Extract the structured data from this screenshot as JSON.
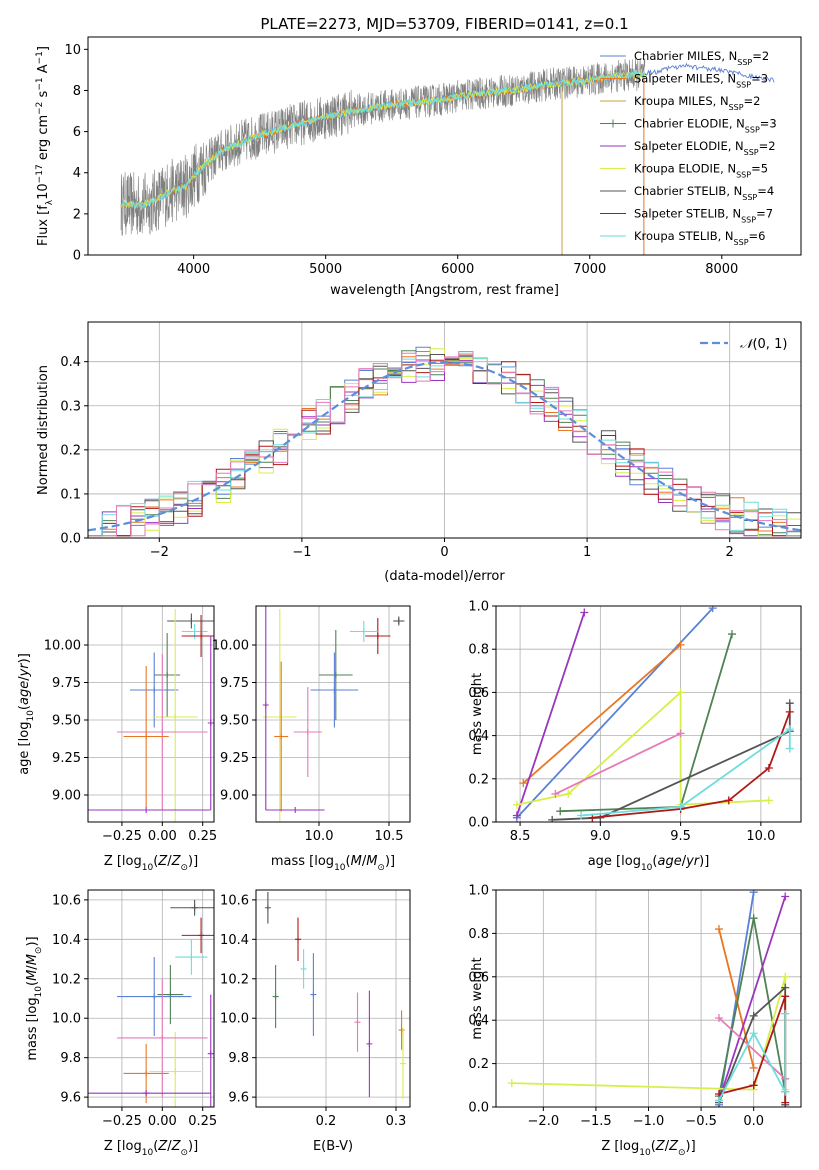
{
  "colors": {
    "Chabrier MILES": "#5b80d6",
    "Salpeter MILES": "#e87724",
    "Kroupa MILES": "#c8a040",
    "Chabrier ELODIE": "#4f8254",
    "Salpeter ELODIE": "#9b35c0",
    "Kroupa ELODIE": "#d9ee4a",
    "Chabrier STELIB": "#555555",
    "Salpeter STELIB": "#b01818",
    "Kroupa STELIB": "#6edddd",
    "pink": "#e67ab8",
    "data": "#808080",
    "gauss": "#5b8fdc"
  },
  "chart_data": [
    {
      "id": "spectrum",
      "type": "line",
      "title": "PLATE=2273, MJD=53709, FIBERID=0141, z=0.1",
      "xlabel": "wavelength [Angstrom, rest frame]",
      "ylabel": "Flux [f_λ 10^-17 erg cm^-2 s^-1 A^-1]",
      "xlim": [
        3200,
        8600
      ],
      "ylim": [
        0,
        10.6
      ],
      "xticks": [
        "4000",
        "5000",
        "6000",
        "7000",
        "8000"
      ],
      "yticks": [
        "0",
        "2",
        "4",
        "6",
        "8",
        "10"
      ],
      "grid": false,
      "legend_position": "top-right",
      "data_range_angstrom": [
        3450,
        7420
      ],
      "continuum_knots": {
        "x": [
          3450,
          3600,
          3700,
          3800,
          3950,
          4050,
          4200,
          4400,
          4600,
          4800,
          5000,
          5200,
          5500,
          5800,
          6100,
          6400,
          6700,
          7000,
          7200,
          7420
        ],
        "y": [
          2.5,
          2.4,
          2.6,
          3.0,
          3.4,
          4.2,
          5.0,
          5.6,
          6.0,
          6.4,
          6.7,
          7.0,
          7.3,
          7.5,
          7.8,
          8.0,
          8.3,
          8.5,
          8.7,
          8.8
        ]
      },
      "model_extension": {
        "x": [
          7420,
          7700,
          8000,
          8200,
          8400
        ],
        "y": [
          8.8,
          9.2,
          9.0,
          8.7,
          8.5
        ]
      },
      "legend": [
        {
          "label": "Chabrier MILES, N",
          "sub": "SSP",
          "n": "=2",
          "color_key": "Chabrier MILES"
        },
        {
          "label": "Salpeter MILES, N",
          "sub": "SSP",
          "n": "=3",
          "color_key": "Salpeter MILES"
        },
        {
          "label": "Kroupa MILES, N",
          "sub": "SSP",
          "n": "=2",
          "color_key": "Kroupa MILES"
        },
        {
          "label": "Chabrier ELODIE, N",
          "sub": "SSP",
          "n": "=3",
          "color_key": "Chabrier ELODIE"
        },
        {
          "label": "Salpeter ELODIE, N",
          "sub": "SSP",
          "n": "=2",
          "color_key": "Salpeter ELODIE"
        },
        {
          "label": "Kroupa ELODIE, N",
          "sub": "SSP",
          "n": "=5",
          "color_key": "Kroupa ELODIE"
        },
        {
          "label": "Chabrier STELIB, N",
          "sub": "SSP",
          "n": "=4",
          "color_key": "Chabrier STELIB"
        },
        {
          "label": "Salpeter STELIB, N",
          "sub": "SSP",
          "n": "=7",
          "color_key": "Salpeter STELIB"
        },
        {
          "label": "Kroupa STELIB, N",
          "sub": "SSP",
          "n": "=6",
          "color_key": "Kroupa STELIB"
        }
      ]
    },
    {
      "id": "residuals",
      "type": "line",
      "xlabel": "(data-model)/error",
      "ylabel": "Normed distribution",
      "xlim": [
        -2.5,
        2.5
      ],
      "ylim": [
        0,
        0.49
      ],
      "xticks": [
        -2,
        -1,
        0,
        1,
        2
      ],
      "xticklabels": [
        "−2",
        "−1",
        "0",
        "1",
        "2"
      ],
      "yticks": [
        0.0,
        0.1,
        0.2,
        0.3,
        0.4
      ],
      "yticklabels": [
        "0.0",
        "0.1",
        "0.2",
        "0.3",
        "0.4"
      ],
      "grid": true,
      "legend_position": "top-right",
      "legend_label": "N(0, 1)",
      "bin_width": 0.1,
      "gaussian": {
        "mean": 0,
        "sigma": 1
      },
      "histogram_color_keys": [
        "Chabrier MILES",
        "Salpeter MILES",
        "Chabrier ELODIE",
        "Salpeter ELODIE",
        "Kroupa ELODIE",
        "Chabrier STELIB",
        "Salpeter STELIB",
        "Kroupa STELIB",
        "pink"
      ]
    },
    {
      "id": "age_vs_Z",
      "type": "scatter",
      "xlabel": "Z [log10(Z/Z⊙)]",
      "ylabel": "age [log10(age/yr)]",
      "xlim": [
        -0.46,
        0.32
      ],
      "ylim": [
        8.82,
        10.26
      ],
      "xticks": [
        -0.25,
        0.0,
        0.25
      ],
      "xticklabels": [
        "−0.25",
        "0.00",
        "0.25"
      ],
      "yticks": [
        9.0,
        9.25,
        9.5,
        9.75,
        10.0
      ],
      "yticklabels": [
        "9.00",
        "9.25",
        "9.50",
        "9.75",
        "10.00"
      ],
      "grid": true,
      "points": [
        {
          "c": "Chabrier STELIB",
          "x": 0.18,
          "y": 10.16,
          "xerr": 0.15,
          "yerr": 0.05
        },
        {
          "c": "Kroupa STELIB",
          "x": 0.2,
          "y": 10.09,
          "xerr": 0.08,
          "yerr": 0.05
        },
        {
          "c": "Salpeter STELIB",
          "x": 0.24,
          "y": 10.06,
          "xerr": 0.12,
          "yerr": 0.14
        },
        {
          "c": "Chabrier ELODIE",
          "x": 0.03,
          "y": 9.8,
          "xerr": 0.08,
          "yerr": 0.28
        },
        {
          "c": "Chabrier MILES",
          "x": -0.05,
          "y": 9.7,
          "xerr": 0.15,
          "yerr": 0.25
        },
        {
          "c": "Kroupa ELODIE",
          "x": 0.08,
          "y": 9.52,
          "xerr": 0.14,
          "yerr": 0.72
        },
        {
          "c": "pink",
          "x": 0.0,
          "y": 9.42,
          "xerr": 0.28,
          "yerr": 0.52
        },
        {
          "c": "Salpeter MILES",
          "x": -0.1,
          "y": 9.39,
          "xerr": 0.14,
          "yerr": 0.47
        },
        {
          "c": "Salpeter ELODIE",
          "x": -0.1,
          "y": 8.9,
          "xerr": 0.4,
          "yerr": 0.0
        },
        {
          "c": "Salpeter ELODIE",
          "x": 0.3,
          "y": 9.48,
          "xerr": 0.0,
          "yerr": 0.58
        }
      ]
    },
    {
      "id": "age_vs_mass",
      "type": "scatter",
      "xlabel": "mass [log10(M/M⊙)]",
      "ylabel": "",
      "xlim": [
        9.55,
        10.65
      ],
      "ylim": [
        8.82,
        10.26
      ],
      "xticks": [
        10.0,
        10.5
      ],
      "xticklabels": [
        "10.0",
        "10.5"
      ],
      "yticks": [
        9.0,
        9.25,
        9.5,
        9.75,
        10.0
      ],
      "yticklabels": [
        "9.00",
        "9.25",
        "9.50",
        "9.75",
        "10.00"
      ],
      "grid": true,
      "points": [
        {
          "c": "Chabrier STELIB",
          "x": 10.57,
          "y": 10.16,
          "xerr": 0.04,
          "yerr": 0.03
        },
        {
          "c": "Salpeter STELIB",
          "x": 10.42,
          "y": 10.06,
          "xerr": 0.09,
          "yerr": 0.12
        },
        {
          "c": "Kroupa STELIB",
          "x": 10.32,
          "y": 10.09,
          "xerr": 0.1,
          "yerr": 0.07
        },
        {
          "c": "Chabrier ELODIE",
          "x": 10.12,
          "y": 9.8,
          "xerr": 0.12,
          "yerr": 0.3
        },
        {
          "c": "Chabrier MILES",
          "x": 10.11,
          "y": 9.7,
          "xerr": 0.17,
          "yerr": 0.25
        },
        {
          "c": "Kroupa ELODIE",
          "x": 9.72,
          "y": 9.52,
          "xerr": 0.12,
          "yerr": 0.72
        },
        {
          "c": "pink",
          "x": 9.92,
          "y": 9.42,
          "xerr": 0.1,
          "yerr": 0.3
        },
        {
          "c": "Salpeter MILES",
          "x": 9.73,
          "y": 9.39,
          "xerr": 0.05,
          "yerr": 0.5
        },
        {
          "c": "Salpeter ELODIE",
          "x": 9.62,
          "y": 9.6,
          "xerr": 0.0,
          "yerr": 0.7
        },
        {
          "c": "Salpeter ELODIE",
          "x": 9.83,
          "y": 8.9,
          "xerr": 0.21,
          "yerr": 0.0
        }
      ]
    },
    {
      "id": "weight_vs_age",
      "type": "line",
      "xlabel": "age [log10(age/yr)]",
      "ylabel": "mass weight",
      "xlim": [
        8.35,
        10.25
      ],
      "ylim": [
        0.0,
        1.0
      ],
      "xticks": [
        8.5,
        9.0,
        9.5,
        10.0
      ],
      "xticklabels": [
        "8.5",
        "9.0",
        "9.5",
        "10.0"
      ],
      "yticks": [
        0.0,
        0.2,
        0.4,
        0.6,
        0.8,
        1.0
      ],
      "yticklabels": [
        "0.0",
        "0.2",
        "0.4",
        "0.6",
        "0.8",
        "1.0"
      ],
      "grid": true,
      "series": [
        {
          "c": "Chabrier MILES",
          "x": [
            8.48,
            9.7
          ],
          "y": [
            0.02,
            0.99
          ]
        },
        {
          "c": "Salpeter MILES",
          "x": [
            8.52,
            9.5
          ],
          "y": [
            0.18,
            0.82
          ]
        },
        {
          "c": "Salpeter ELODIE",
          "x": [
            8.48,
            8.9
          ],
          "y": [
            0.03,
            0.97
          ]
        },
        {
          "c": "Chabrier ELODIE",
          "x": [
            8.75,
            9.5,
            9.82
          ],
          "y": [
            0.05,
            0.07,
            0.87
          ]
        },
        {
          "c": "Kroupa ELODIE",
          "x": [
            8.48,
            8.8,
            9.5,
            9.5,
            10.05
          ],
          "y": [
            0.08,
            0.13,
            0.6,
            0.08,
            0.1
          ]
        },
        {
          "c": "pink",
          "x": [
            8.72,
            9.5
          ],
          "y": [
            0.13,
            0.41
          ]
        },
        {
          "c": "Chabrier STELIB",
          "x": [
            8.7,
            9.0,
            10.18,
            10.18
          ],
          "y": [
            0.01,
            0.02,
            0.42,
            0.55
          ]
        },
        {
          "c": "Salpeter STELIB",
          "x": [
            8.95,
            9.5,
            9.8,
            10.05,
            10.18
          ],
          "y": [
            0.02,
            0.06,
            0.1,
            0.25,
            0.51
          ]
        },
        {
          "c": "Kroupa STELIB",
          "x": [
            8.88,
            9.5,
            10.18,
            10.18
          ],
          "y": [
            0.03,
            0.07,
            0.43,
            0.34
          ]
        }
      ]
    },
    {
      "id": "mass_vs_Z",
      "type": "scatter",
      "xlabel": "Z [log10(Z/Z⊙)]",
      "ylabel": "mass [log10(M/M⊙)]",
      "xlim": [
        -0.46,
        0.32
      ],
      "ylim": [
        9.55,
        10.65
      ],
      "xticks": [
        -0.25,
        0.0,
        0.25
      ],
      "xticklabels": [
        "−0.25",
        "0.00",
        "0.25"
      ],
      "yticks": [
        9.6,
        9.8,
        10.0,
        10.2,
        10.4,
        10.6
      ],
      "yticklabels": [
        "9.6",
        "9.8",
        "10.0",
        "10.2",
        "10.4",
        "10.6"
      ],
      "grid": true,
      "points": [
        {
          "c": "Chabrier STELIB",
          "x": 0.2,
          "y": 10.56,
          "xerr": 0.15,
          "yerr": 0.04
        },
        {
          "c": "Salpeter STELIB",
          "x": 0.24,
          "y": 10.42,
          "xerr": 0.12,
          "yerr": 0.09
        },
        {
          "c": "Kroupa STELIB",
          "x": 0.18,
          "y": 10.31,
          "xerr": 0.1,
          "yerr": 0.09
        },
        {
          "c": "Chabrier ELODIE",
          "x": 0.05,
          "y": 10.12,
          "xerr": 0.08,
          "yerr": 0.15
        },
        {
          "c": "Chabrier MILES",
          "x": -0.05,
          "y": 10.11,
          "xerr": 0.23,
          "yerr": 0.2
        },
        {
          "c": "Kroupa ELODIE",
          "x": 0.08,
          "y": 9.73,
          "xerr": 0.16,
          "yerr": 0.2
        },
        {
          "c": "pink",
          "x": 0.0,
          "y": 9.9,
          "xerr": 0.28,
          "yerr": 0.3
        },
        {
          "c": "Salpeter MILES",
          "x": -0.1,
          "y": 9.72,
          "xerr": 0.14,
          "yerr": 0.15
        },
        {
          "c": "Salpeter ELODIE",
          "x": -0.1,
          "y": 9.62,
          "xerr": 0.4,
          "yerr": 0.0
        },
        {
          "c": "Salpeter ELODIE",
          "x": 0.3,
          "y": 9.82,
          "xerr": 0.0,
          "yerr": 0.3
        }
      ]
    },
    {
      "id": "mass_vs_ebv",
      "type": "scatter",
      "xlabel": "E(B-V)",
      "ylabel": "",
      "xlim": [
        0.1,
        0.32
      ],
      "ylim": [
        9.55,
        10.65
      ],
      "xticks": [
        0.2,
        0.3
      ],
      "xticklabels": [
        "0.2",
        "0.3"
      ],
      "yticks": [
        9.6,
        9.8,
        10.0,
        10.2,
        10.4,
        10.6
      ],
      "yticklabels": [
        "9.6",
        "9.8",
        "10.0",
        "10.2",
        "10.4",
        "10.6"
      ],
      "grid": true,
      "points": [
        {
          "c": "Chabrier STELIB",
          "x": 0.117,
          "y": 10.56,
          "xerr": 0.0,
          "yerr": 0.08
        },
        {
          "c": "Salpeter STELIB",
          "x": 0.16,
          "y": 10.4,
          "xerr": 0.0,
          "yerr": 0.11
        },
        {
          "c": "Kroupa STELIB",
          "x": 0.168,
          "y": 10.25,
          "xerr": 0.0,
          "yerr": 0.1
        },
        {
          "c": "Chabrier MILES",
          "x": 0.182,
          "y": 10.12,
          "xerr": 0.0,
          "yerr": 0.21
        },
        {
          "c": "Chabrier ELODIE",
          "x": 0.128,
          "y": 10.11,
          "xerr": 0.0,
          "yerr": 0.16
        },
        {
          "c": "pink",
          "x": 0.245,
          "y": 9.98,
          "xerr": 0.0,
          "yerr": 0.15
        },
        {
          "c": "Salpeter ELODIE",
          "x": 0.262,
          "y": 9.87,
          "xerr": 0.0,
          "yerr": 0.27
        },
        {
          "c": "Salpeter MILES",
          "x": 0.308,
          "y": 9.94,
          "xerr": 0.0,
          "yerr": 0.1
        },
        {
          "c": "Kroupa ELODIE",
          "x": 0.31,
          "y": 9.77,
          "xerr": 0.0,
          "yerr": 0.18
        }
      ]
    },
    {
      "id": "weight_vs_Z",
      "type": "line",
      "xlabel": "Z [log10(Z/Z⊙)]",
      "ylabel": "mass weight",
      "xlim": [
        -2.45,
        0.45
      ],
      "ylim": [
        0.0,
        1.0
      ],
      "xticks": [
        -2.0,
        -1.5,
        -1.0,
        -0.5,
        0.0
      ],
      "xticklabels": [
        "−2.0",
        "−1.5",
        "−1.0",
        "−0.5",
        "0.0"
      ],
      "yticks": [
        0.0,
        0.2,
        0.4,
        0.6,
        0.8,
        1.0
      ],
      "yticklabels": [
        "0.0",
        "0.2",
        "0.4",
        "0.6",
        "0.8",
        "1.0"
      ],
      "grid": true,
      "series": [
        {
          "c": "Chabrier MILES",
          "x": [
            -0.33,
            0.0
          ],
          "y": [
            0.01,
            0.99
          ]
        },
        {
          "c": "Salpeter MILES",
          "x": [
            -0.33,
            0.0
          ],
          "y": [
            0.82,
            0.18
          ]
        },
        {
          "c": "Chabrier ELODIE",
          "x": [
            -0.33,
            0.0,
            0.3
          ],
          "y": [
            0.05,
            0.87,
            0.07
          ]
        },
        {
          "c": "Salpeter ELODIE",
          "x": [
            -0.33,
            0.3
          ],
          "y": [
            0.03,
            0.97
          ]
        },
        {
          "c": "Kroupa ELODIE",
          "x": [
            -2.3,
            0.0,
            0.3,
            0.3
          ],
          "y": [
            0.11,
            0.08,
            0.6,
            0.08
          ]
        },
        {
          "c": "pink",
          "x": [
            -0.33,
            0.3
          ],
          "y": [
            0.41,
            0.13
          ]
        },
        {
          "c": "Chabrier STELIB",
          "x": [
            -0.33,
            0.0,
            0.3,
            0.3
          ],
          "y": [
            0.02,
            0.42,
            0.55,
            0.01
          ]
        },
        {
          "c": "Salpeter STELIB",
          "x": [
            -0.33,
            0.0,
            0.3,
            0.3
          ],
          "y": [
            0.06,
            0.1,
            0.51,
            0.02
          ]
        },
        {
          "c": "Kroupa STELIB",
          "x": [
            -0.33,
            0.0,
            0.3,
            0.3
          ],
          "y": [
            0.03,
            0.34,
            0.07,
            0.43
          ]
        }
      ]
    }
  ]
}
